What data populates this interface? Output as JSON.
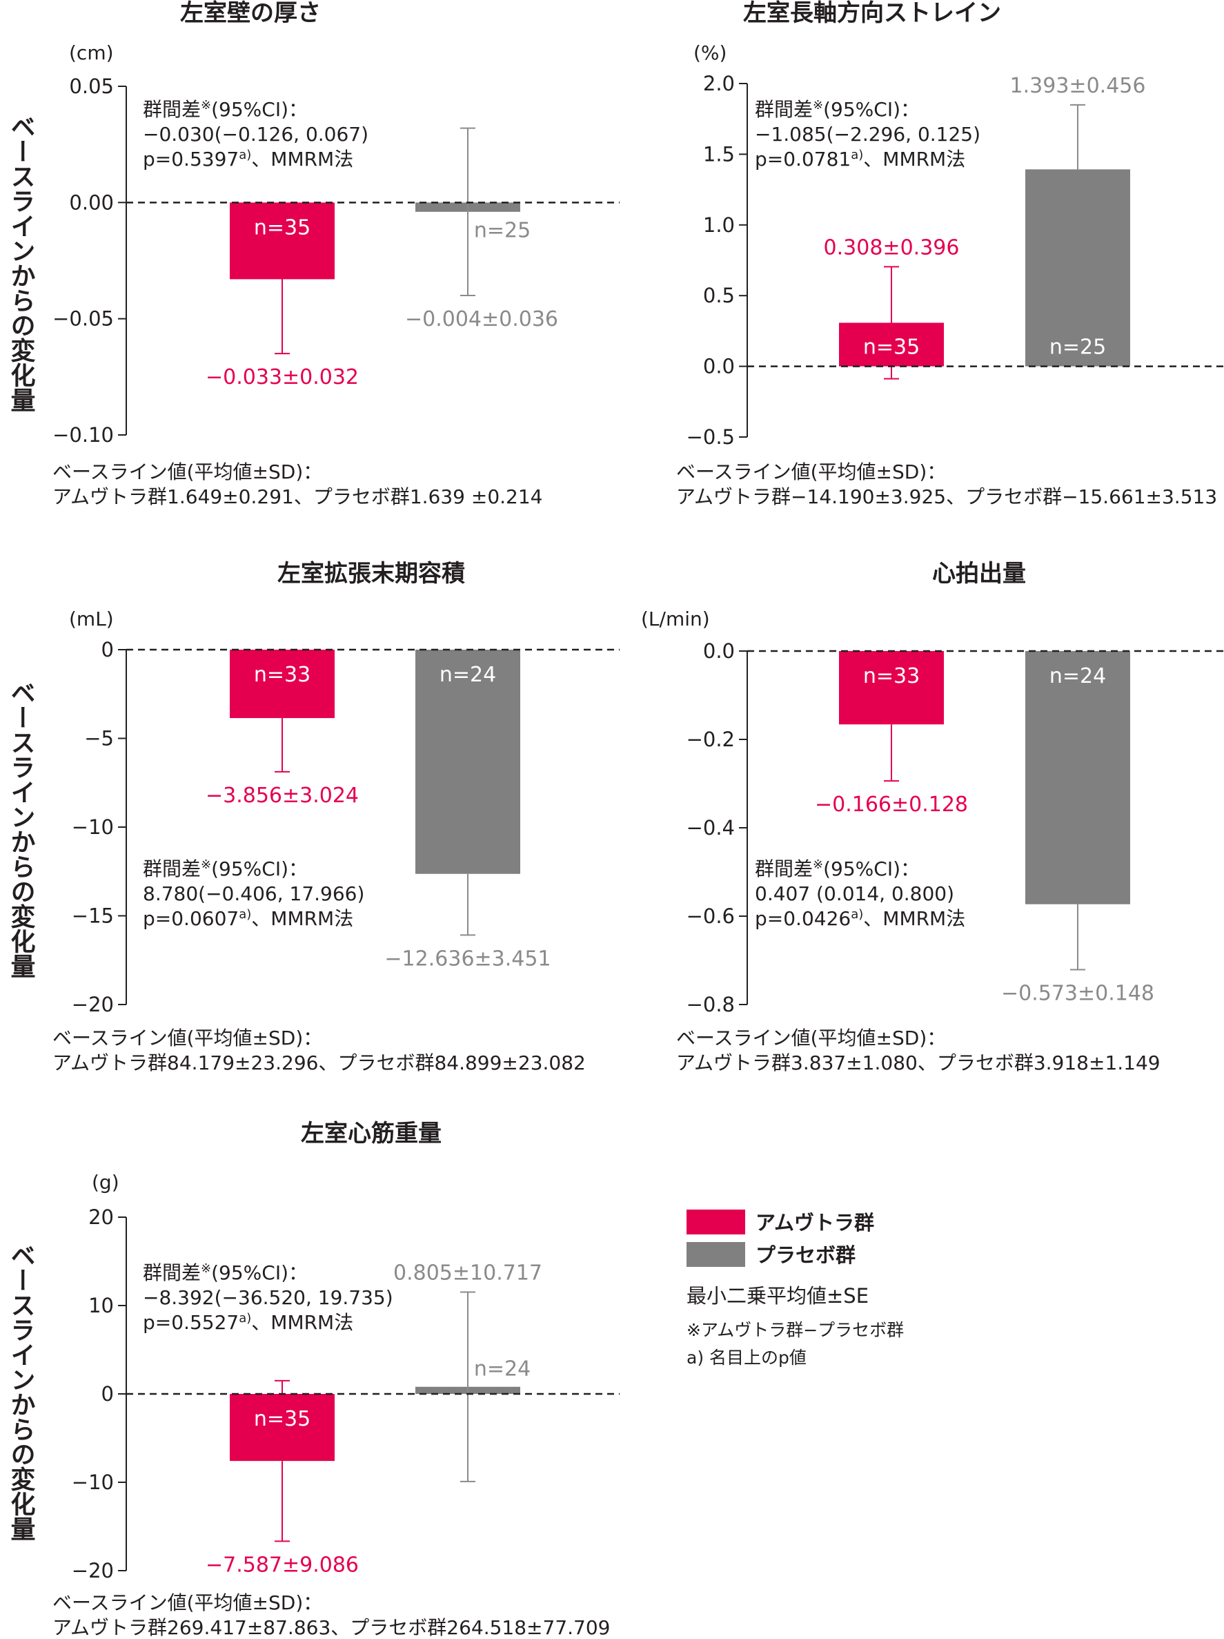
{
  "common": {
    "yaxis_label": "ベースラインからの変化量",
    "colors": {
      "amvuttra": "#e5004f",
      "placebo": "#808080"
    }
  },
  "legend": {
    "amvuttra": "アムヴトラ群",
    "placebo": "プラセボ群",
    "stat": "最小二乗平均値±SE",
    "note1": "※アムヴトラ群−プラセボ群",
    "note2": "a) 名目上のp値"
  },
  "chart_data": [
    {
      "type": "bar",
      "title": "左室壁の厚さ",
      "unit": "(cm)",
      "ylim": [
        -0.1,
        0.05
      ],
      "yticks": [
        "0.05",
        "0.00",
        "−0.05",
        "−0.10"
      ],
      "series": [
        {
          "name": "アムヴトラ群",
          "value": -0.033,
          "se": 0.032,
          "n": "n=35",
          "label": "−0.033±0.032"
        },
        {
          "name": "プラセボ群",
          "value": -0.004,
          "se": 0.036,
          "n": "n=25",
          "label": "−0.004±0.036"
        }
      ],
      "diff": [
        "群間差",
        "(95%CI)：",
        "−0.030(−0.126, 0.067)",
        "p=0.5397",
        "、MMRM法"
      ],
      "baseline": [
        "ベースライン値(平均値±SD)：",
        "アムヴトラ群1.649±0.291、プラセボ群1.639 ±0.214"
      ]
    },
    {
      "type": "bar",
      "title": "左室長軸方向ストレイン",
      "unit": "(%)",
      "ylim": [
        -0.5,
        2.0
      ],
      "yticks": [
        "2.0",
        "1.5",
        "1.0",
        "0.5",
        "0.0",
        "−0.5"
      ],
      "series": [
        {
          "name": "アムヴトラ群",
          "value": 0.308,
          "se": 0.396,
          "n": "n=35",
          "label": "0.308±0.396"
        },
        {
          "name": "プラセボ群",
          "value": 1.393,
          "se": 0.456,
          "n": "n=25",
          "label": "1.393±0.456"
        }
      ],
      "diff": [
        "群間差",
        "(95%CI)：",
        "−1.085(−2.296, 0.125)",
        "p=0.0781",
        "、MMRM法"
      ],
      "baseline": [
        "ベースライン値(平均値±SD)：",
        "アムヴトラ群−14.190±3.925、プラセボ群−15.661±3.513"
      ]
    },
    {
      "type": "bar",
      "title": "左室拡張末期容積",
      "unit": "(mL)",
      "ylim": [
        -20,
        0
      ],
      "yticks": [
        "0",
        "−5",
        "−10",
        "−15",
        "−20"
      ],
      "series": [
        {
          "name": "アムヴトラ群",
          "value": -3.856,
          "se": 3.024,
          "n": "n=33",
          "label": "−3.856±3.024"
        },
        {
          "name": "プラセボ群",
          "value": -12.636,
          "se": 3.451,
          "n": "n=24",
          "label": "−12.636±3.451"
        }
      ],
      "diff": [
        "群間差",
        "(95%CI)：",
        "8.780(−0.406, 17.966)",
        "p=0.0607",
        "、MMRM法"
      ],
      "baseline": [
        "ベースライン値(平均値±SD)：",
        "アムヴトラ群84.179±23.296、プラセボ群84.899±23.082"
      ]
    },
    {
      "type": "bar",
      "title": "心拍出量",
      "unit": "(L/min)",
      "ylim": [
        -0.8,
        0.0
      ],
      "yticks": [
        "0.0",
        "−0.2",
        "−0.4",
        "−0.6",
        "−0.8"
      ],
      "series": [
        {
          "name": "アムヴトラ群",
          "value": -0.166,
          "se": 0.128,
          "n": "n=33",
          "label": "−0.166±0.128"
        },
        {
          "name": "プラセボ群",
          "value": -0.573,
          "se": 0.148,
          "n": "n=24",
          "label": "−0.573±0.148"
        }
      ],
      "diff": [
        "群間差",
        "(95%CI)：",
        "0.407 (0.014, 0.800)",
        "p=0.0426",
        "、MMRM法"
      ],
      "baseline": [
        "ベースライン値(平均値±SD)：",
        "アムヴトラ群3.837±1.080、プラセボ群3.918±1.149"
      ]
    },
    {
      "type": "bar",
      "title": "左室心筋重量",
      "unit": "(g)",
      "ylim": [
        -20,
        20
      ],
      "yticks": [
        "20",
        "10",
        "0",
        "−10",
        "−20"
      ],
      "series": [
        {
          "name": "アムヴトラ群",
          "value": -7.587,
          "se": 9.086,
          "n": "n=35",
          "label": "−7.587±9.086"
        },
        {
          "name": "プラセボ群",
          "value": 0.805,
          "se": 10.717,
          "n": "n=24",
          "label": "0.805±10.717"
        }
      ],
      "diff": [
        "群間差",
        "(95%CI)：",
        "−8.392(−36.520, 19.735)",
        "p=0.5527",
        "、MMRM法"
      ],
      "baseline": [
        "ベースライン値(平均値±SD)：",
        "アムヴトラ群269.417±87.863、プラセボ群264.518±77.709"
      ]
    }
  ]
}
